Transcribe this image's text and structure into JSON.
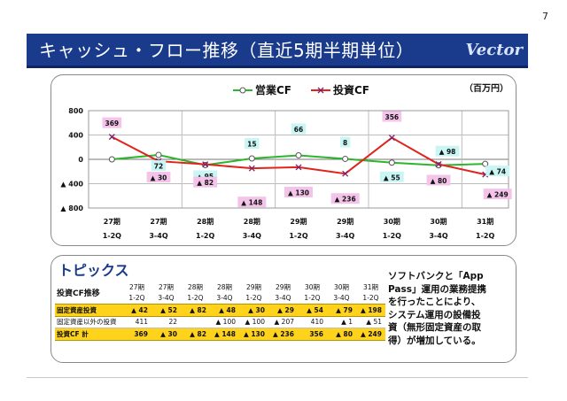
{
  "page_number": "7",
  "header": {
    "title": "キャッシュ・フロー推移（直近5期半期単位）",
    "logo": "Vector"
  },
  "colors": {
    "title_bar": "#1a3a8c",
    "operating": "#2db52d",
    "investing": "#e0231b",
    "highlight_row": "#ffd21c",
    "cyan_label": "#c9f5f5",
    "pink_label": "#f4c3e9"
  },
  "chart_data": {
    "type": "line",
    "unit": "（百万円）",
    "x": [
      {
        "period": "27期",
        "half": "1-2Q"
      },
      {
        "period": "27期",
        "half": "3-4Q"
      },
      {
        "period": "28期",
        "half": "1-2Q"
      },
      {
        "period": "28期",
        "half": "3-4Q"
      },
      {
        "period": "29期",
        "half": "1-2Q"
      },
      {
        "period": "29期",
        "half": "3-4Q"
      },
      {
        "period": "30期",
        "half": "1-2Q"
      },
      {
        "period": "30期",
        "half": "3-4Q"
      },
      {
        "period": "31期",
        "half": "1-2Q"
      }
    ],
    "ylim": [
      -800,
      800
    ],
    "yticks": [
      {
        "value": 800,
        "label": "800"
      },
      {
        "value": 400,
        "label": "400"
      },
      {
        "value": 0,
        "label": "0"
      },
      {
        "value": -400,
        "label": "▲ 400"
      },
      {
        "value": -800,
        "label": "▲ 800"
      }
    ],
    "grid": true,
    "legend_position": "top",
    "series": [
      {
        "name": "営業CF",
        "color": "#2db52d",
        "marker": "circle",
        "values": [
          {
            "y": 0,
            "label": ""
          },
          {
            "y": 72,
            "label": "72"
          },
          {
            "y": -95,
            "label": "▲ 95"
          },
          {
            "y": 15,
            "label": "15"
          },
          {
            "y": 66,
            "label": "66"
          },
          {
            "y": 8,
            "label": "8"
          },
          {
            "y": -55,
            "label": "▲ 55"
          },
          {
            "y": -98,
            "label": "▲ 98"
          },
          {
            "y": -74,
            "label": "▲ 74"
          }
        ]
      },
      {
        "name": "投資CF",
        "color": "#e0231b",
        "marker": "x",
        "values": [
          {
            "y": 369,
            "label": "369"
          },
          {
            "y": -30,
            "label": "▲ 30"
          },
          {
            "y": -82,
            "label": "▲ 82"
          },
          {
            "y": -148,
            "label": "▲ 148"
          },
          {
            "y": -130,
            "label": "▲ 130"
          },
          {
            "y": -236,
            "label": "▲ 236"
          },
          {
            "y": 356,
            "label": "356"
          },
          {
            "y": -80,
            "label": "▲ 80"
          },
          {
            "y": -249,
            "label": "▲ 249"
          }
        ]
      }
    ]
  },
  "topics": {
    "heading": "トピックス",
    "table": {
      "title": "投資CF推移",
      "columns": [
        {
          "period": "27期",
          "half": "1-2Q"
        },
        {
          "period": "27期",
          "half": "3-4Q"
        },
        {
          "period": "28期",
          "half": "1-2Q"
        },
        {
          "period": "28期",
          "half": "3-4Q"
        },
        {
          "period": "29期",
          "half": "1-2Q"
        },
        {
          "period": "29期",
          "half": "3-4Q"
        },
        {
          "period": "30期",
          "half": "1-2Q"
        },
        {
          "period": "30期",
          "half": "3-4Q"
        },
        {
          "period": "31期",
          "half": "1-2Q"
        }
      ],
      "rows": [
        {
          "label": "固定資産投資",
          "style": "hl",
          "values": [
            "▲ 42",
            "▲ 52",
            "▲ 82",
            "▲ 48",
            "▲ 30",
            "▲ 29",
            "▲ 54",
            "▲ 79",
            "▲ 198"
          ]
        },
        {
          "label": "固定資産以外の投資",
          "style": "plain",
          "values": [
            "411",
            "22",
            "",
            "▲ 100",
            "▲ 100",
            "▲ 207",
            "410",
            "▲ 1",
            "▲ 51"
          ]
        },
        {
          "label": "投資CF 計",
          "style": "hl",
          "values": [
            "369",
            "▲ 30",
            "▲ 82",
            "▲ 148",
            "▲ 130",
            "▲ 236",
            "356",
            "▲ 80",
            "▲ 249"
          ]
        }
      ]
    },
    "note_lines": [
      "ソフトバンクと「App",
      "Pass」運用の業務提携",
      "を行ったことにより、",
      "システム運用の設備投",
      "資（無形固定資産の取",
      "得）が増加している。"
    ]
  }
}
